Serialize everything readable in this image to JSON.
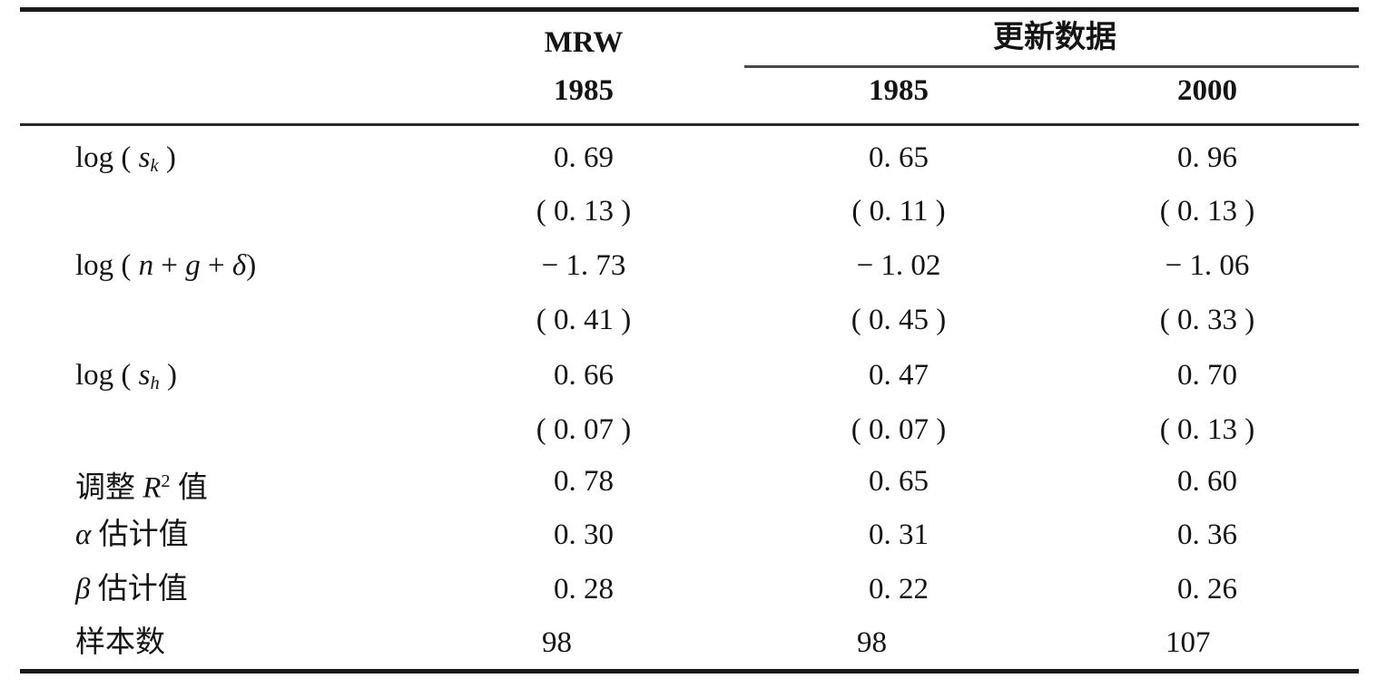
{
  "page": {
    "background": "#ffffff",
    "text_color": "#141414",
    "thick_rule_color": "#1a1a1a",
    "thin_rule_color": "#4a4a4a"
  },
  "table": {
    "header": {
      "group_mrw": "MRW",
      "group_updated": "更新数据",
      "year_mrw": "1985",
      "year_updated_1": "1985",
      "year_updated_2": "2000"
    },
    "rows": [
      {
        "label_parts": [
          {
            "t": "log ( "
          },
          {
            "t": "s",
            "i": true
          },
          {
            "t": "k",
            "i": true,
            "sub": true
          },
          {
            "t": " )"
          }
        ],
        "values": [
          "0. 69",
          "0. 65",
          "0. 96"
        ]
      },
      {
        "label_parts": [],
        "values": [
          "( 0. 13 )",
          "( 0. 11 )",
          "( 0. 13 )"
        ]
      },
      {
        "label_parts": [
          {
            "t": "log ( "
          },
          {
            "t": "n",
            "i": true
          },
          {
            "t": " + "
          },
          {
            "t": "g",
            "i": true
          },
          {
            "t": " + "
          },
          {
            "t": "δ",
            "i": true
          },
          {
            "t": ")"
          }
        ],
        "values": [
          "− 1. 73",
          "− 1. 02",
          "− 1. 06"
        ]
      },
      {
        "label_parts": [],
        "values": [
          "( 0. 41 )",
          "( 0. 45 )",
          "( 0. 33 )"
        ]
      },
      {
        "label_parts": [
          {
            "t": "log ( "
          },
          {
            "t": "s",
            "i": true
          },
          {
            "t": "h",
            "i": true,
            "sub": true
          },
          {
            "t": " )"
          }
        ],
        "values": [
          "0. 66",
          "0. 47",
          "0. 70"
        ]
      },
      {
        "label_parts": [],
        "values": [
          "( 0. 07 )",
          "( 0. 07 )",
          "( 0. 13 )"
        ]
      },
      {
        "label_parts": [
          {
            "t": "调整 "
          },
          {
            "t": "R",
            "i": true
          },
          {
            "t": "2",
            "sup": true
          },
          {
            "t": " 值"
          }
        ],
        "values": [
          "0. 78",
          "0. 65",
          "0. 60"
        ]
      },
      {
        "label_parts": [
          {
            "t": "α",
            "i": true
          },
          {
            "t": " 估计值"
          }
        ],
        "values": [
          "0. 30",
          "0. 31",
          "0. 36"
        ]
      },
      {
        "label_parts": [
          {
            "t": "β",
            "i": true
          },
          {
            "t": " 估计值"
          }
        ],
        "values": [
          "0. 28",
          "0. 22",
          "0. 26"
        ]
      },
      {
        "label_parts": [
          {
            "t": "样本数"
          }
        ],
        "values": [
          "98",
          "98",
          "107"
        ],
        "align": "left"
      }
    ]
  }
}
